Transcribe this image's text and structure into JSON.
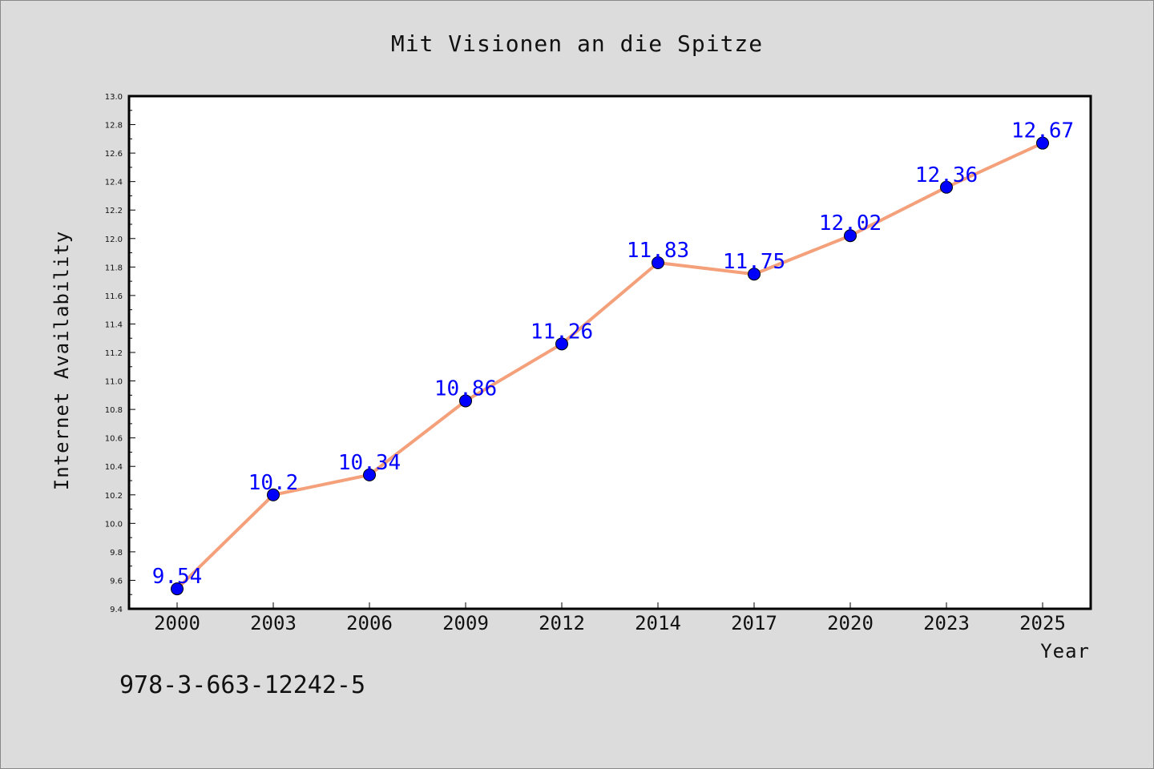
{
  "chart_data": {
    "type": "line",
    "title": "Mit Visionen an die Spitze",
    "xlabel": "Year",
    "ylabel": "Internet Availability",
    "categories": [
      "2000",
      "2003",
      "2006",
      "2009",
      "2012",
      "2014",
      "2017",
      "2020",
      "2023",
      "2025"
    ],
    "series": [
      {
        "values": [
          9.54,
          10.2,
          10.34,
          10.86,
          11.26,
          11.83,
          11.75,
          12.02,
          12.36,
          12.67
        ],
        "labels": [
          "9.54",
          "10.2",
          "10.34",
          "10.86",
          "11.26",
          "11.83",
          "11.75",
          "12.02",
          "12.36",
          "12.67"
        ]
      }
    ],
    "ylim": [
      9.4,
      13.0
    ],
    "yticks": [
      "9.4",
      "9.6",
      "9.8",
      "10.0",
      "10.2",
      "10.4",
      "10.6",
      "10.8",
      "11.0",
      "11.2",
      "11.4",
      "11.6",
      "11.8",
      "12.0",
      "12.2",
      "12.4",
      "12.6",
      "12.8",
      "13.0"
    ],
    "grid": false,
    "colors": {
      "line": "#f4a07a",
      "marker": "#0000ff",
      "data_label": "#0000ff",
      "plot_background": "#ffffff",
      "figure_background": "#dcdcdc"
    }
  },
  "footnote": "978-3-663-12242-5"
}
